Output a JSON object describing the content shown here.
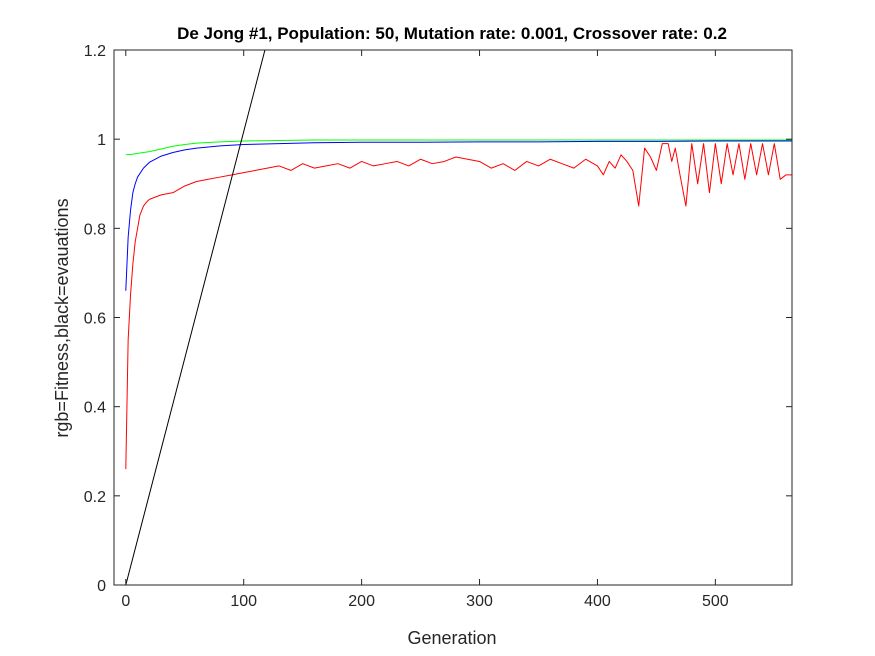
{
  "chart_data": {
    "type": "line",
    "title": "De Jong #1, Population: 50, Mutation rate: 0.001, Crossover rate: 0.2",
    "xlabel": "Generation",
    "ylabel": "rgb=Fitness,black=evauations",
    "xlim": [
      -10,
      565
    ],
    "ylim": [
      0,
      1.2
    ],
    "xticks": [
      0,
      100,
      200,
      300,
      400,
      500
    ],
    "xtick_labels": [
      "0",
      "100",
      "200",
      "300",
      "400",
      "500"
    ],
    "yticks": [
      0,
      0.2,
      0.4,
      0.6,
      0.8,
      1,
      1.2
    ],
    "ytick_labels": [
      "0",
      "0.2",
      "0.4",
      "0.6",
      "0.8",
      "1",
      "1.2"
    ],
    "grid": false,
    "box": true,
    "series": [
      {
        "color": "#00ff00",
        "x": [
          0,
          5,
          10,
          20,
          30,
          40,
          50,
          60,
          80,
          100,
          130,
          160,
          200,
          250,
          300,
          350,
          400,
          450,
          500,
          565
        ],
        "y": [
          0.965,
          0.966,
          0.968,
          0.972,
          0.978,
          0.984,
          0.988,
          0.991,
          0.994,
          0.996,
          0.997,
          0.998,
          0.998,
          0.998,
          0.998,
          0.998,
          0.998,
          0.998,
          0.998,
          0.998
        ]
      },
      {
        "color": "#0000ff",
        "x": [
          0,
          2,
          4,
          6,
          8,
          10,
          15,
          20,
          25,
          30,
          40,
          50,
          60,
          80,
          100,
          130,
          160,
          200,
          250,
          300,
          350,
          400,
          450,
          500,
          565
        ],
        "y": [
          0.66,
          0.78,
          0.84,
          0.88,
          0.9,
          0.915,
          0.935,
          0.948,
          0.955,
          0.962,
          0.97,
          0.976,
          0.98,
          0.985,
          0.988,
          0.99,
          0.992,
          0.993,
          0.993,
          0.994,
          0.994,
          0.995,
          0.995,
          0.996,
          0.996
        ]
      },
      {
        "color": "#ff0000",
        "x": [
          0,
          2,
          4,
          6,
          8,
          10,
          12,
          15,
          18,
          20,
          25,
          30,
          40,
          50,
          60,
          70,
          80,
          90,
          100,
          110,
          120,
          130,
          140,
          150,
          160,
          170,
          180,
          190,
          200,
          210,
          220,
          230,
          240,
          250,
          260,
          270,
          280,
          290,
          300,
          310,
          320,
          330,
          340,
          350,
          360,
          370,
          380,
          390,
          400,
          405,
          410,
          415,
          420,
          425,
          430,
          435,
          440,
          445,
          450,
          455,
          460,
          463,
          466,
          470,
          475,
          480,
          485,
          490,
          495,
          500,
          505,
          510,
          515,
          520,
          525,
          530,
          535,
          540,
          545,
          550,
          555,
          560,
          565
        ],
        "y": [
          0.26,
          0.55,
          0.65,
          0.72,
          0.77,
          0.8,
          0.83,
          0.85,
          0.86,
          0.865,
          0.87,
          0.875,
          0.88,
          0.895,
          0.905,
          0.91,
          0.915,
          0.92,
          0.925,
          0.93,
          0.935,
          0.94,
          0.93,
          0.945,
          0.935,
          0.94,
          0.945,
          0.935,
          0.95,
          0.94,
          0.945,
          0.95,
          0.94,
          0.955,
          0.945,
          0.95,
          0.96,
          0.955,
          0.95,
          0.935,
          0.945,
          0.93,
          0.95,
          0.94,
          0.955,
          0.945,
          0.935,
          0.955,
          0.94,
          0.92,
          0.95,
          0.935,
          0.965,
          0.95,
          0.93,
          0.85,
          0.98,
          0.96,
          0.93,
          0.99,
          0.99,
          0.95,
          0.98,
          0.92,
          0.85,
          0.99,
          0.9,
          0.99,
          0.88,
          0.99,
          0.9,
          0.99,
          0.92,
          0.99,
          0.91,
          0.99,
          0.92,
          0.99,
          0.92,
          0.99,
          0.91,
          0.92,
          0.92
        ]
      },
      {
        "color": "#000000",
        "x": [
          0,
          118
        ],
        "y": [
          0,
          1.2
        ]
      }
    ]
  }
}
